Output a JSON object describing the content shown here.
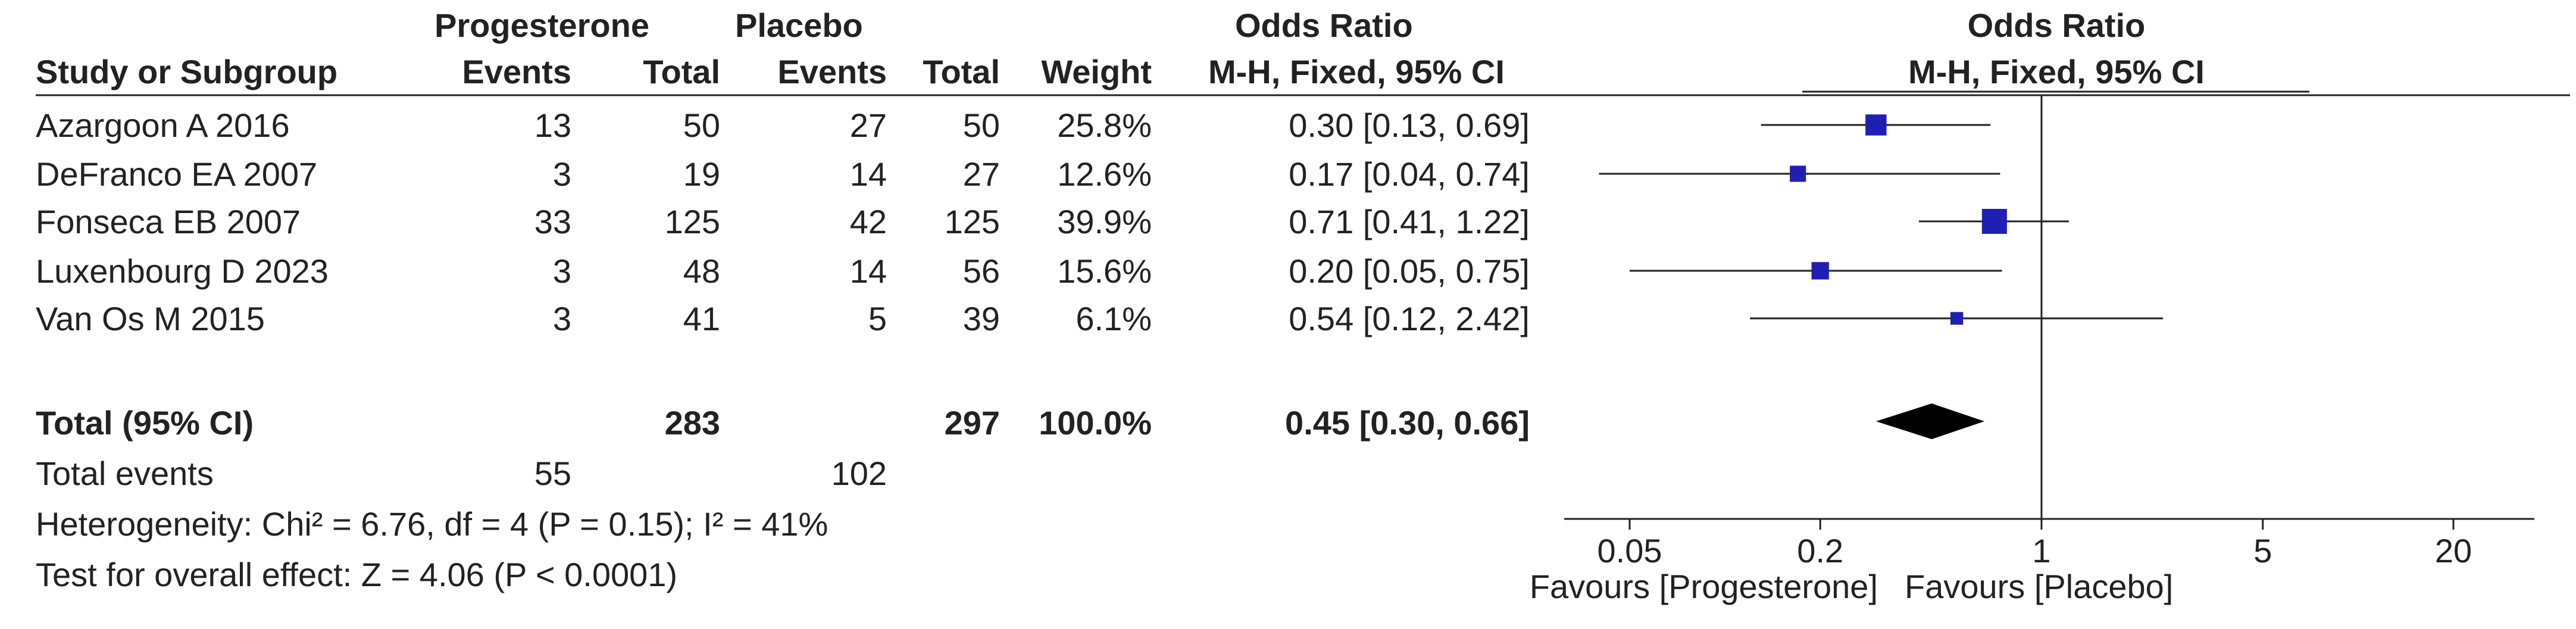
{
  "headers": {
    "group1": "Progesterone",
    "group2": "Placebo",
    "or_title": "Odds Ratio",
    "plot_title": "Odds Ratio",
    "study": "Study or Subgroup",
    "events1": "Events",
    "total1": "Total",
    "events2": "Events",
    "total2": "Total",
    "weight": "Weight",
    "or_method": "M-H, Fixed, 95% CI",
    "plot_method": "M-H, Fixed, 95% CI"
  },
  "rows": [
    {
      "study": "Azargoon A 2016",
      "events1": "13",
      "total1": "50",
      "events2": "27",
      "total2": "50",
      "weight": "25.8%",
      "ci": "0.30 [0.13, 0.69]"
    },
    {
      "study": "DeFranco EA 2007",
      "events1": "3",
      "total1": "19",
      "events2": "14",
      "total2": "27",
      "weight": "12.6%",
      "ci": "0.17 [0.04, 0.74]"
    },
    {
      "study": "Fonseca EB 2007",
      "events1": "33",
      "total1": "125",
      "events2": "42",
      "total2": "125",
      "weight": "39.9%",
      "ci": "0.71 [0.41, 1.22]"
    },
    {
      "study": "Luxenbourg D 2023",
      "events1": "3",
      "total1": "48",
      "events2": "14",
      "total2": "56",
      "weight": "15.6%",
      "ci": "0.20 [0.05, 0.75]"
    },
    {
      "study": "Van Os M 2015",
      "events1": "3",
      "total1": "41",
      "events2": "5",
      "total2": "39",
      "weight": "6.1%",
      "ci": "0.54 [0.12, 2.42]"
    }
  ],
  "total": {
    "label": "Total (95% CI)",
    "total1": "283",
    "total2": "297",
    "weight": "100.0%",
    "ci": "0.45 [0.30, 0.66]"
  },
  "events": {
    "label": "Total events",
    "events1": "55",
    "events2": "102"
  },
  "heterogeneity": "Heterogeneity: Chi² = 6.76, df = 4 (P = 0.15); I² = 41%",
  "overall": "Test for overall effect: Z = 4.06 (P < 0.0001)",
  "favours_left": "Favours [Progesterone]",
  "favours_right": "Favours [Placebo]",
  "colors": {
    "marker": "#1f1fb4",
    "diamond": "#000000",
    "text": "#222222"
  },
  "chart_data": {
    "type": "forest",
    "xscale": "log",
    "xlim": [
      0.05,
      20
    ],
    "ticks": [
      0.05,
      0.2,
      1,
      5,
      20
    ],
    "tick_labels": [
      "0.05",
      "0.2",
      "1",
      "5",
      "20"
    ],
    "null_line": 1,
    "studies": [
      {
        "name": "Azargoon A 2016",
        "or": 0.3,
        "lo": 0.13,
        "hi": 0.69,
        "weight": 25.8
      },
      {
        "name": "DeFranco EA 2007",
        "or": 0.17,
        "lo": 0.04,
        "hi": 0.74,
        "weight": 12.6
      },
      {
        "name": "Fonseca EB 2007",
        "or": 0.71,
        "lo": 0.41,
        "hi": 1.22,
        "weight": 39.9
      },
      {
        "name": "Luxenbourg D 2023",
        "or": 0.2,
        "lo": 0.05,
        "hi": 0.75,
        "weight": 15.6
      },
      {
        "name": "Van Os M 2015",
        "or": 0.54,
        "lo": 0.12,
        "hi": 2.42,
        "weight": 6.1
      }
    ],
    "pooled": {
      "or": 0.45,
      "lo": 0.3,
      "hi": 0.66
    }
  }
}
